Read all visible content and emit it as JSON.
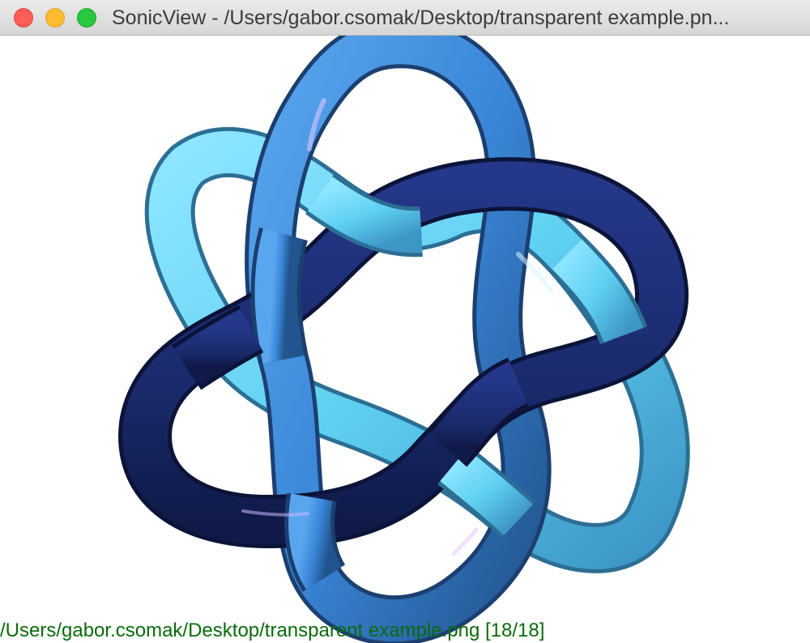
{
  "window": {
    "title": "SonicView - /Users/gabor.csomak/Desktop/transparent example.pn...",
    "controls": {
      "close": "close-icon",
      "minimize": "minimize-icon",
      "zoom": "zoom-icon"
    }
  },
  "viewer": {
    "image_subject": "knot-render",
    "background": "#ffffff",
    "strand_colors": {
      "light": "#5fd0f2",
      "medium": "#3a86d8",
      "dark": "#1a2a6c"
    }
  },
  "status": {
    "text": "/Users/gabor.csomak/Desktop/transparent example.png [18/18]",
    "color": "#0b6b0b"
  }
}
